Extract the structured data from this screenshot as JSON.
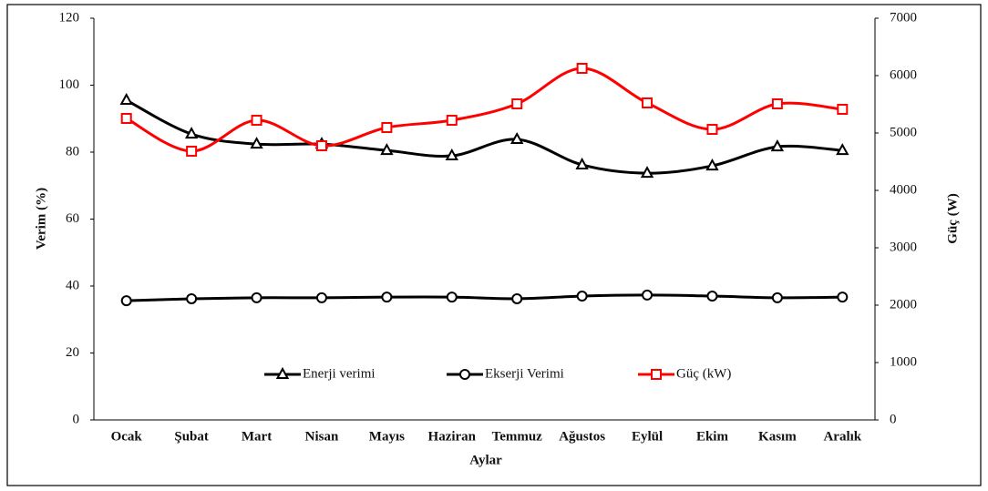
{
  "chart_data": {
    "type": "line",
    "categories": [
      "Ocak",
      "Şubat",
      "Mart",
      "Nisan",
      "Mayıs",
      "Haziran",
      "Temmuz",
      "Ağustos",
      "Eylül",
      "Ekim",
      "Kasım",
      "Aralık"
    ],
    "x_label": "Aylar",
    "y_label": "Verim (%)",
    "y2_label": "Güç (W)",
    "ylim": [
      0,
      120
    ],
    "yticks": [
      0,
      20,
      40,
      60,
      80,
      100,
      120
    ],
    "y2lim": [
      0,
      7000
    ],
    "y2ticks": [
      0,
      1000,
      2000,
      3000,
      4000,
      5000,
      6000,
      7000
    ],
    "smooth": true,
    "grid": false,
    "series": [
      {
        "name": "Enerji verimi",
        "color": "#000000",
        "marker": "triangle",
        "values": [
          95.5,
          85.4,
          82.4,
          82.4,
          80.5,
          78.9,
          83.8,
          76.2,
          73.7,
          75.9,
          81.6,
          80.5
        ]
      },
      {
        "name": "Ekserji Verimi",
        "color": "#000000",
        "marker": "circle",
        "values": [
          35.6,
          36.2,
          36.5,
          36.5,
          36.7,
          36.7,
          36.2,
          37.0,
          37.3,
          37.0,
          36.5,
          36.7
        ]
      },
      {
        "name": "Güç (kW)",
        "color": "#ff0000",
        "marker": "square",
        "axis": "y2",
        "values": [
          5254,
          4683,
          5222,
          4778,
          5095,
          5222,
          5508,
          6127,
          5524,
          5063,
          5508,
          5413
        ]
      }
    ]
  }
}
